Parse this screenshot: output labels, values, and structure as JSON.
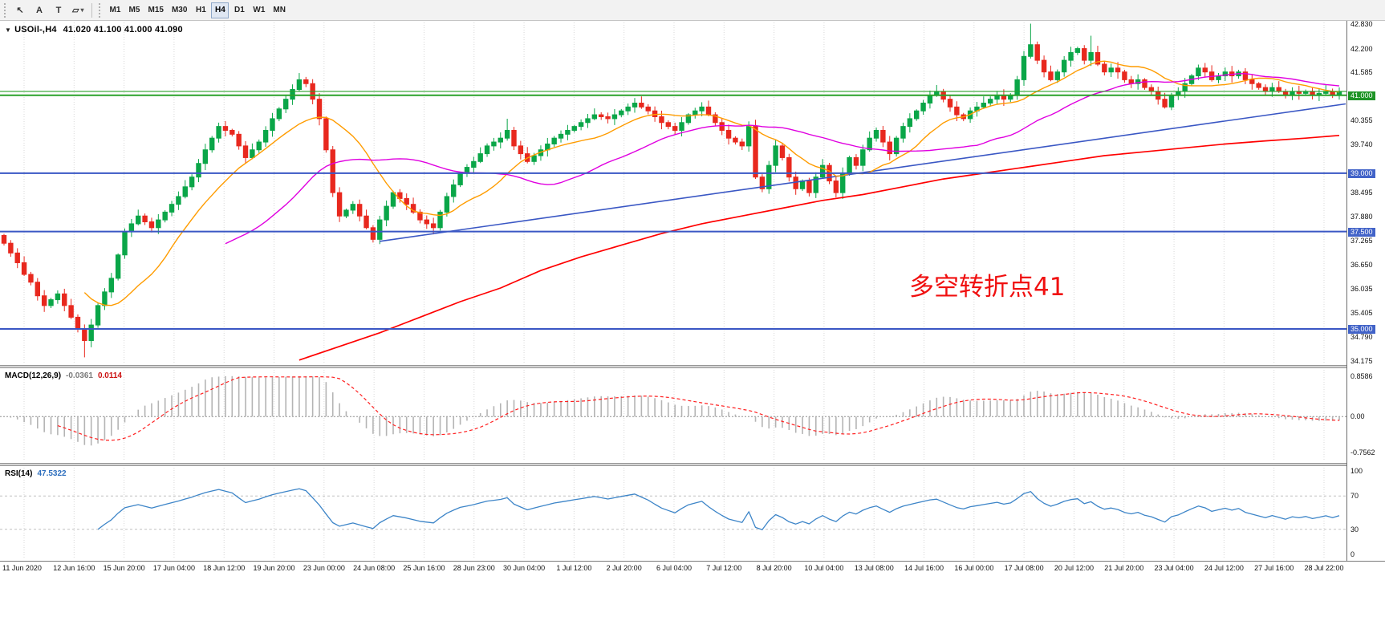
{
  "toolbar": {
    "tools": [
      {
        "name": "cursor-tool",
        "glyph": "↖"
      },
      {
        "name": "text-label-tool",
        "glyph": "A"
      },
      {
        "name": "text-tool",
        "glyph": "T"
      },
      {
        "name": "shapes-tool",
        "glyph": "▱",
        "dropdown": true
      }
    ],
    "timeframes": [
      "M1",
      "M5",
      "M15",
      "M30",
      "H1",
      "H4",
      "D1",
      "W1",
      "MN"
    ],
    "active_timeframe": "H4"
  },
  "chart": {
    "collapse_icon": "▼",
    "symbol_timeframe": "USOil-,H4",
    "ohlc_text": "41.020 41.100 41.000 41.090",
    "annotation": {
      "text": "多空转折点41",
      "color": "#f01010"
    },
    "colors": {
      "bull": "#0aa648",
      "bear": "#e8281e",
      "ma_fast": "#ff9c00",
      "ma_medium": "#e000e0",
      "ma_slow": "#ff0000",
      "trendline": "#3a57c4",
      "hline_green": "#2aa12a",
      "hline_blue": "#3a57c4",
      "grid": "#d8d8d8",
      "macd_hist": "#b4b4b4",
      "macd_signal": "#ff2020",
      "rsi_line": "#3d85c8",
      "level_dash": "#c0c0c0"
    },
    "price_axis": [
      {
        "text": "42.830",
        "price": 42.83,
        "style": "normal"
      },
      {
        "text": "42.200",
        "price": 42.2,
        "style": "normal"
      },
      {
        "text": "41.585",
        "price": 41.585,
        "style": "normal"
      },
      {
        "text": "41.000",
        "price": 41.0,
        "style": "green"
      },
      {
        "text": "40.355",
        "price": 40.355,
        "style": "normal"
      },
      {
        "text": "39.740",
        "price": 39.74,
        "style": "normal"
      },
      {
        "text": "39.000",
        "price": 39.0,
        "style": "blue"
      },
      {
        "text": "38.495",
        "price": 38.495,
        "style": "normal"
      },
      {
        "text": "37.880",
        "price": 37.88,
        "style": "normal"
      },
      {
        "text": "37.500",
        "price": 37.5,
        "style": "blue"
      },
      {
        "text": "37.265",
        "price": 37.265,
        "style": "normal"
      },
      {
        "text": "36.650",
        "price": 36.65,
        "style": "normal"
      },
      {
        "text": "36.035",
        "price": 36.035,
        "style": "normal"
      },
      {
        "text": "35.405",
        "price": 35.405,
        "style": "normal"
      },
      {
        "text": "35.000",
        "price": 35.0,
        "style": "blue"
      },
      {
        "text": "34.790",
        "price": 34.79,
        "style": "normal"
      },
      {
        "text": "34.175",
        "price": 34.175,
        "style": "normal"
      }
    ],
    "hlines": [
      {
        "price": 41.1,
        "color": "green",
        "w": 1.2
      },
      {
        "price": 41.0,
        "color": "green",
        "w": 2
      },
      {
        "price": 39.0,
        "color": "blue",
        "w": 2
      },
      {
        "price": 37.5,
        "color": "blue",
        "w": 2
      },
      {
        "price": 35.0,
        "color": "blue",
        "w": 2
      }
    ],
    "trendline": {
      "b1": 56,
      "p1": 37.25,
      "b2": 200,
      "p2": 40.78
    },
    "slow_ma_anchors": [
      [
        44,
        34.2
      ],
      [
        50,
        34.55
      ],
      [
        56,
        34.9
      ],
      [
        62,
        35.3
      ],
      [
        68,
        35.7
      ],
      [
        74,
        36.05
      ],
      [
        80,
        36.5
      ],
      [
        86,
        36.85
      ],
      [
        92,
        37.15
      ],
      [
        98,
        37.45
      ],
      [
        104,
        37.7
      ],
      [
        110,
        37.9
      ],
      [
        116,
        38.1
      ],
      [
        122,
        38.3
      ],
      [
        128,
        38.45
      ],
      [
        134,
        38.65
      ],
      [
        140,
        38.85
      ],
      [
        146,
        39.0
      ],
      [
        152,
        39.15
      ],
      [
        158,
        39.3
      ],
      [
        164,
        39.45
      ],
      [
        170,
        39.55
      ],
      [
        176,
        39.65
      ],
      [
        182,
        39.75
      ],
      [
        188,
        39.83
      ],
      [
        194,
        39.9
      ],
      [
        199,
        39.97
      ]
    ]
  },
  "chart_data": {
    "type": "candlestick",
    "symbol": "USOil-",
    "timeframe": "H4",
    "title": "USOil-,H4 41.020 41.100 41.000 41.090",
    "last_ohlc": {
      "open": 41.02,
      "high": 41.1,
      "low": 41.0,
      "close": 41.09
    },
    "y_range": [
      34.175,
      42.83
    ],
    "horizontal_levels": [
      41.0,
      39.0,
      37.5,
      35.0
    ],
    "annotations": [
      "多空转折点41"
    ],
    "x_labels": [
      "11 Jun 2020",
      "12 Jun 16:00",
      "15 Jun 20:00",
      "17 Jun 04:00",
      "18 Jun 12:00",
      "19 Jun 20:00",
      "23 Jun 00:00",
      "24 Jun 08:00",
      "25 Jun 16:00",
      "28 Jun 23:00",
      "30 Jun 04:00",
      "1 Jul 12:00",
      "2 Jul 20:00",
      "6 Jul 04:00",
      "7 Jul 12:00",
      "8 Jul 20:00",
      "10 Jul 04:00",
      "13 Jul 08:00",
      "14 Jul 16:00",
      "16 Jul 00:00",
      "17 Jul 08:00",
      "20 Jul 12:00",
      "21 Jul 20:00",
      "23 Jul 04:00",
      "24 Jul 12:00",
      "27 Jul 16:00",
      "28 Jul 22:00"
    ],
    "closes": [
      37.2,
      36.95,
      36.7,
      36.4,
      36.2,
      35.85,
      35.6,
      35.75,
      35.9,
      35.6,
      35.3,
      35.0,
      34.7,
      35.1,
      35.6,
      35.95,
      36.3,
      36.9,
      37.5,
      37.7,
      37.9,
      37.75,
      37.6,
      37.8,
      38.0,
      38.2,
      38.4,
      38.65,
      38.9,
      39.25,
      39.6,
      39.9,
      40.2,
      40.1,
      40.0,
      39.7,
      39.4,
      39.6,
      39.8,
      40.1,
      40.4,
      40.65,
      40.9,
      41.15,
      41.4,
      41.3,
      40.9,
      40.4,
      39.6,
      38.5,
      37.9,
      38.05,
      38.2,
      37.9,
      37.6,
      37.3,
      37.8,
      38.15,
      38.5,
      38.35,
      38.2,
      38.0,
      37.8,
      37.7,
      37.6,
      38.0,
      38.4,
      38.7,
      39.0,
      39.15,
      39.3,
      39.5,
      39.7,
      39.8,
      39.9,
      40.1,
      39.7,
      39.5,
      39.3,
      39.45,
      39.6,
      39.75,
      39.9,
      40.0,
      40.1,
      40.2,
      40.3,
      40.4,
      40.5,
      40.45,
      40.4,
      40.5,
      40.6,
      40.7,
      40.8,
      40.7,
      40.6,
      40.45,
      40.3,
      40.2,
      40.1,
      40.3,
      40.5,
      40.6,
      40.7,
      40.5,
      40.3,
      40.1,
      39.9,
      39.8,
      39.7,
      40.2,
      38.9,
      38.6,
      39.2,
      39.7,
      39.4,
      38.9,
      38.6,
      38.8,
      38.5,
      38.9,
      39.2,
      38.8,
      38.5,
      39.0,
      39.4,
      39.2,
      39.6,
      39.9,
      40.1,
      39.8,
      39.5,
      39.9,
      40.2,
      40.4,
      40.6,
      40.8,
      41.0,
      41.1,
      40.9,
      40.7,
      40.5,
      40.4,
      40.6,
      40.7,
      40.8,
      40.9,
      41.0,
      40.9,
      41.0,
      41.4,
      42.0,
      42.3,
      41.9,
      41.6,
      41.4,
      41.6,
      41.9,
      42.1,
      42.2,
      41.9,
      42.1,
      41.8,
      41.6,
      41.7,
      41.6,
      41.4,
      41.3,
      41.4,
      41.2,
      41.1,
      40.9,
      40.7,
      41.0,
      41.1,
      41.3,
      41.5,
      41.7,
      41.6,
      41.4,
      41.5,
      41.6,
      41.5,
      41.6,
      41.4,
      41.3,
      41.2,
      41.1,
      41.2,
      41.1,
      41.0,
      41.1,
      41.05,
      41.1,
      41.0,
      41.05,
      41.1,
      41.02,
      41.09
    ],
    "wick_extras": [
      [
        12,
        -0.3
      ],
      [
        75,
        0.25
      ],
      [
        153,
        0.5
      ],
      [
        162,
        0.3
      ]
    ],
    "overlays": [
      {
        "name": "ma-fast",
        "type": "sma",
        "period": 13,
        "color": "#ff9c00"
      },
      {
        "name": "ma-medium",
        "type": "sma",
        "period": 34,
        "color": "#e000e0"
      },
      {
        "name": "ma-slow",
        "type": "smoothed-long",
        "color": "#ff0000"
      },
      {
        "name": "trendline",
        "type": "line",
        "color": "#3a57c4"
      }
    ],
    "indicators": {
      "macd": {
        "label": "MACD(12,26,9)",
        "value_main": "-0.0361",
        "value_signal": "0.0114",
        "fast": 12,
        "slow": 26,
        "signal": 9,
        "range": [
          -0.7562,
          0.8586
        ],
        "axis": [
          {
            "text": "0.8586",
            "v": 0.8586
          },
          {
            "text": "0.00",
            "v": 0
          },
          {
            "text": "-0.7562",
            "v": -0.7562
          }
        ]
      },
      "rsi": {
        "label": "RSI(14)",
        "value": "47.5322",
        "period": 14,
        "levels": [
          30,
          70
        ],
        "range": [
          0,
          100
        ],
        "axis": [
          {
            "text": "100",
            "v": 100
          },
          {
            "text": "70",
            "v": 70
          },
          {
            "text": "30",
            "v": 30
          },
          {
            "text": "0",
            "v": 0
          }
        ]
      }
    }
  }
}
